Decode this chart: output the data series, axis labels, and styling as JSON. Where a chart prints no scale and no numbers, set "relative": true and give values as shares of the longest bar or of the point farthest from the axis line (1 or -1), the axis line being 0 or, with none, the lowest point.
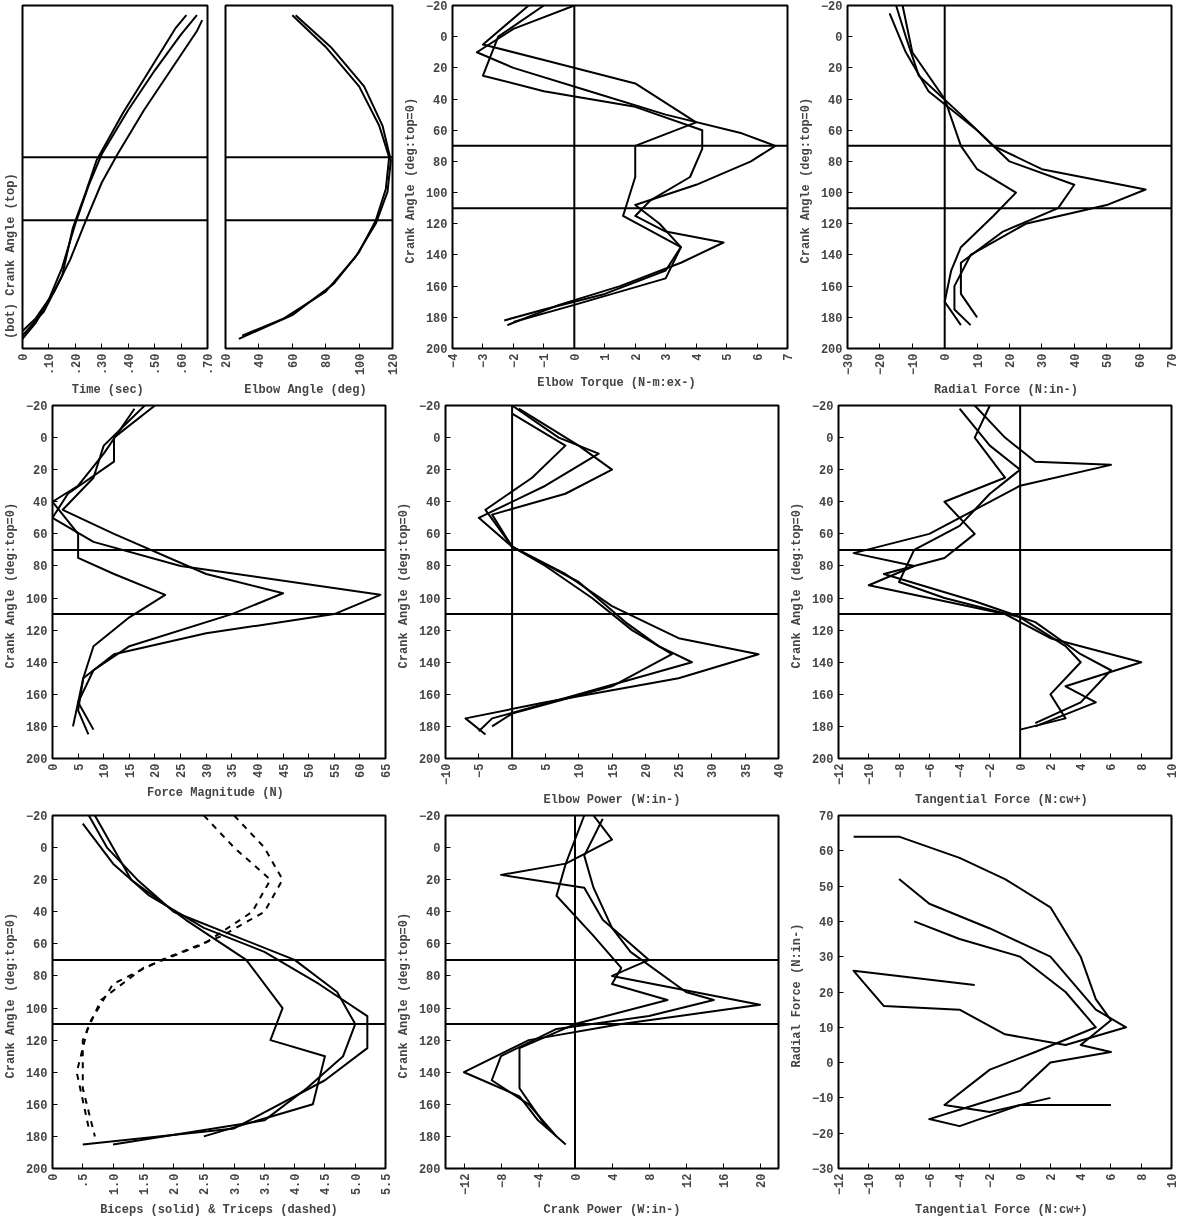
{
  "chart_data": [
    {
      "type": "line",
      "relative": true,
      "xlabel": "Time   (sec)",
      "ylabel": "(bot)            Crank Angle            (top)",
      "xlim": [
        0,
        0.7
      ],
      "xticks": [
        {
          "value": 0,
          "label": "0"
        },
        {
          "value": 0.1,
          "label": ".10"
        },
        {
          "value": 0.2,
          "label": ".20"
        },
        {
          "value": 0.3,
          "label": ".30"
        },
        {
          "value": 0.4,
          "label": ".40"
        },
        {
          "value": 0.5,
          "label": ".50"
        },
        {
          "value": 0.6,
          "label": ".60"
        },
        {
          "value": 0.7,
          "label": ".70"
        }
      ],
      "ref_lines": [
        {
          "axis": "y",
          "value": 0.561
        },
        {
          "axis": "y",
          "value": 0.366
        }
      ],
      "series": [
        {
          "color": "#000000",
          "x": [
            0,
            0.05,
            0.1,
            0.15,
            0.2,
            0.25,
            0.3,
            0.4,
            0.5,
            0.6,
            0.66
          ],
          "values": [
            0,
            0.049,
            0.122,
            0.22,
            0.356,
            0.473,
            0.571,
            0.707,
            0.829,
            0.941,
            1
          ]
        },
        {
          "color": "#000000",
          "x": [
            0,
            0.05,
            0.12,
            0.18,
            0.24,
            0.3,
            0.36,
            0.46,
            0.56,
            0.66,
            0.68
          ],
          "values": [
            0.024,
            0.063,
            0.146,
            0.244,
            0.366,
            0.483,
            0.571,
            0.707,
            0.829,
            0.951,
            0.985
          ]
        },
        {
          "color": "#000000",
          "x": [
            0,
            0.08,
            0.15,
            0.19,
            0.24,
            0.28,
            0.38,
            0.48,
            0.58,
            0.62
          ],
          "values": [
            0.01,
            0.083,
            0.195,
            0.341,
            0.454,
            0.551,
            0.698,
            0.829,
            0.961,
            1
          ]
        }
      ]
    },
    {
      "type": "line",
      "relative": true,
      "xlabel": "Elbow Angle  (deg)",
      "xlim": [
        20,
        120
      ],
      "xticks": [
        20,
        40,
        60,
        80,
        100,
        120
      ],
      "ref_lines": [
        {
          "axis": "y",
          "value": 0.561
        },
        {
          "axis": "y",
          "value": 0.366
        }
      ],
      "series": [
        {
          "color": "#000000",
          "x": [
            60,
            80,
            100,
            112,
            118,
            116,
            110,
            100,
            85,
            60,
            28
          ],
          "values": [
            1,
            0.902,
            0.78,
            0.659,
            0.561,
            0.463,
            0.366,
            0.268,
            0.171,
            0.073,
            0
          ]
        },
        {
          "color": "#000000",
          "x": [
            62,
            83,
            103,
            114,
            119,
            117,
            110,
            98,
            80,
            55,
            30
          ],
          "values": [
            1,
            0.902,
            0.78,
            0.659,
            0.551,
            0.454,
            0.356,
            0.254,
            0.146,
            0.063,
            0.01
          ]
        }
      ]
    },
    {
      "type": "line",
      "xlabel": "Elbow Torque  (N-m:ex-)",
      "ylabel": "Crank Angle  (deg:top=0)",
      "xlim": [
        -4,
        7
      ],
      "xticks": [
        -4,
        -3,
        -2,
        -1,
        0,
        1,
        2,
        3,
        4,
        5,
        6,
        7
      ],
      "ylim": [
        200,
        -20
      ],
      "yticks": [
        -20,
        0,
        20,
        40,
        60,
        80,
        100,
        120,
        140,
        160,
        180,
        200
      ],
      "ref_lines": [
        {
          "axis": "y",
          "value": 70
        },
        {
          "axis": "y",
          "value": 110
        },
        {
          "axis": "x",
          "value": 0
        }
      ],
      "series": [
        {
          "color": "#000000",
          "x": [
            0,
            -2,
            -3.2,
            -2,
            0.5,
            3,
            5.5,
            6.6,
            5.8,
            4,
            2,
            2.8,
            3.5,
            3,
            1,
            -1,
            -2.3
          ],
          "values": [
            -20,
            -5,
            10,
            20,
            35,
            50,
            62,
            70,
            80,
            95,
            108,
            120,
            135,
            150,
            165,
            175,
            182
          ]
        },
        {
          "color": "#000000",
          "x": [
            -1,
            -2.5,
            -3,
            -1,
            2,
            4.2,
            4.2,
            3.8,
            2.5,
            2,
            3,
            4.9,
            3.5,
            1.5,
            -0.5,
            -2.2
          ],
          "values": [
            -20,
            0,
            25,
            35,
            45,
            60,
            72,
            90,
            105,
            115,
            125,
            132,
            145,
            160,
            172,
            185
          ]
        },
        {
          "color": "#000000",
          "x": [
            -1.5,
            -3,
            -1,
            2,
            4,
            2,
            2,
            1.6,
            3.5,
            3,
            0,
            -2
          ],
          "values": [
            -20,
            5,
            15,
            30,
            55,
            70,
            90,
            115,
            135,
            155,
            172,
            183
          ]
        }
      ]
    },
    {
      "type": "line",
      "xlabel": "Radial Force  (N:in-)",
      "ylabel": "Crank Angle  (deg:top=0)",
      "xlim": [
        -30,
        70
      ],
      "xticks": [
        -30,
        -20,
        -10,
        0,
        10,
        20,
        30,
        40,
        50,
        60,
        70
      ],
      "ylim": [
        200,
        -20
      ],
      "yticks": [
        -20,
        0,
        20,
        40,
        60,
        80,
        100,
        120,
        140,
        160,
        180,
        200
      ],
      "ref_lines": [
        {
          "axis": "y",
          "value": 70
        },
        {
          "axis": "y",
          "value": 110
        },
        {
          "axis": "x",
          "value": 0
        }
      ],
      "series": [
        {
          "color": "#000000",
          "x": [
            -15,
            -12,
            -8,
            5,
            15,
            30,
            62,
            50,
            25,
            8,
            3,
            3,
            8
          ],
          "values": [
            -20,
            0,
            25,
            50,
            70,
            85,
            98,
            108,
            120,
            140,
            160,
            175,
            185
          ]
        },
        {
          "color": "#000000",
          "x": [
            -17,
            -12,
            -5,
            10,
            20,
            40,
            35,
            18,
            5,
            5,
            10
          ],
          "values": [
            -15,
            10,
            35,
            60,
            80,
            95,
            110,
            125,
            145,
            165,
            180
          ]
        },
        {
          "color": "#000000",
          "x": [
            -13,
            -10,
            0,
            5,
            10,
            22,
            15,
            5,
            2,
            0,
            5
          ],
          "values": [
            -20,
            10,
            40,
            70,
            85,
            100,
            115,
            135,
            150,
            170,
            185
          ]
        }
      ]
    },
    {
      "type": "line",
      "xlabel": "Force Magnitude  (N)",
      "ylabel": "Crank Angle  (deg:top=0)",
      "xlim": [
        0,
        65
      ],
      "xticks": [
        0,
        5,
        10,
        15,
        20,
        25,
        30,
        35,
        40,
        45,
        50,
        55,
        60,
        65
      ],
      "ylim": [
        200,
        -20
      ],
      "yticks": [
        -20,
        0,
        20,
        40,
        60,
        80,
        100,
        120,
        140,
        160,
        180,
        200
      ],
      "ref_lines": [
        {
          "axis": "y",
          "value": 70
        },
        {
          "axis": "y",
          "value": 110
        }
      ],
      "series": [
        {
          "color": "#000000",
          "x": [
            20,
            12,
            12,
            3,
            0,
            8,
            25,
            64,
            55,
            30,
            12,
            6,
            5,
            7
          ],
          "values": [
            -20,
            0,
            15,
            35,
            50,
            65,
            80,
            98,
            110,
            122,
            135,
            150,
            170,
            185
          ]
        },
        {
          "color": "#000000",
          "x": [
            18,
            10,
            8,
            2,
            12,
            30,
            45,
            35,
            15,
            8,
            5,
            8
          ],
          "values": [
            -20,
            5,
            25,
            45,
            60,
            85,
            97,
            110,
            130,
            145,
            165,
            182
          ]
        },
        {
          "color": "#000000",
          "x": [
            16,
            10,
            5,
            0,
            5,
            5,
            12,
            22,
            15,
            8,
            6,
            4
          ],
          "values": [
            -18,
            10,
            30,
            40,
            60,
            75,
            85,
            98,
            112,
            130,
            150,
            180
          ]
        }
      ]
    },
    {
      "type": "line",
      "xlabel": "Elbow Power (W:in-)",
      "ylabel": "Crank Angle  (deg:top=0)",
      "xlim": [
        -10,
        40
      ],
      "xticks": [
        -10,
        -5,
        0,
        5,
        10,
        15,
        20,
        25,
        30,
        35,
        40
      ],
      "ylim": [
        200,
        -20
      ],
      "yticks": [
        -20,
        0,
        20,
        40,
        60,
        80,
        100,
        120,
        140,
        160,
        180,
        200
      ],
      "ref_lines": [
        {
          "axis": "y",
          "value": 70
        },
        {
          "axis": "y",
          "value": 110
        },
        {
          "axis": "x",
          "value": 0
        }
      ],
      "series": [
        {
          "color": "#000000",
          "x": [
            0,
            7,
            13,
            5,
            -5,
            0,
            8,
            15,
            25,
            37,
            25,
            5,
            -7,
            -4
          ],
          "values": [
            -20,
            0,
            10,
            30,
            50,
            68,
            85,
            105,
            125,
            135,
            150,
            165,
            175,
            185
          ]
        },
        {
          "color": "#000000",
          "x": [
            1,
            10,
            15,
            8,
            -3,
            0,
            10,
            17,
            22,
            27,
            10,
            -3,
            -5
          ],
          "values": [
            -18,
            5,
            20,
            35,
            48,
            68,
            90,
            115,
            130,
            140,
            160,
            175,
            183
          ]
        },
        {
          "color": "#000000",
          "x": [
            0,
            8,
            3,
            -4,
            0,
            5,
            12,
            18,
            24,
            15,
            0,
            -3
          ],
          "values": [
            -15,
            5,
            25,
            45,
            68,
            80,
            100,
            120,
            135,
            155,
            172,
            180
          ]
        }
      ]
    },
    {
      "type": "line",
      "xlabel": "Tangential Force  (N:cw+)",
      "ylabel": "Crank Angle  (deg:top=0)",
      "xlim": [
        -12,
        10
      ],
      "xticks": [
        -12,
        -10,
        -8,
        -6,
        -4,
        -2,
        0,
        2,
        4,
        6,
        8,
        10
      ],
      "ylim": [
        200,
        -20
      ],
      "yticks": [
        -20,
        0,
        20,
        40,
        60,
        80,
        100,
        120,
        140,
        160,
        180,
        200
      ],
      "ref_lines": [
        {
          "axis": "y",
          "value": 70
        },
        {
          "axis": "y",
          "value": 110
        },
        {
          "axis": "x",
          "value": 0
        }
      ],
      "series": [
        {
          "color": "#000000",
          "x": [
            -3,
            -1,
            1,
            6,
            0,
            -3,
            -6,
            -11,
            -7,
            -10,
            -6,
            -1,
            2,
            8,
            3,
            5,
            1
          ],
          "values": [
            -20,
            0,
            15,
            17,
            30,
            45,
            60,
            72,
            80,
            92,
            100,
            110,
            125,
            140,
            155,
            165,
            180
          ]
        },
        {
          "color": "#000000",
          "x": [
            -4,
            -2,
            0,
            -2,
            -4,
            -7,
            -8,
            -5,
            0,
            3,
            4,
            2,
            3,
            0
          ],
          "values": [
            -18,
            5,
            20,
            35,
            55,
            70,
            90,
            100,
            112,
            130,
            140,
            160,
            175,
            182
          ]
        },
        {
          "color": "#000000",
          "x": [
            -2,
            -3,
            -1,
            -5,
            -3,
            -5,
            -9,
            -3,
            1,
            4,
            6,
            4,
            1
          ],
          "values": [
            -20,
            0,
            25,
            40,
            60,
            75,
            85,
            102,
            115,
            135,
            145,
            165,
            178
          ]
        }
      ]
    },
    {
      "type": "line",
      "xlabel": "Biceps (solid) & Triceps (dashed)",
      "ylabel": "Crank Angle  (deg:top=0)",
      "xlim": [
        0,
        5.5
      ],
      "xticks": [
        {
          "value": 0,
          "label": "0"
        },
        {
          "value": 0.5,
          "label": ".5"
        },
        {
          "value": 1,
          "label": "1.0"
        },
        {
          "value": 1.5,
          "label": "1.5"
        },
        {
          "value": 2,
          "label": "2.0"
        },
        {
          "value": 2.5,
          "label": "2.5"
        },
        {
          "value": 3,
          "label": "3.0"
        },
        {
          "value": 3.5,
          "label": "3.5"
        },
        {
          "value": 4,
          "label": "4.0"
        },
        {
          "value": 4.5,
          "label": "4.5"
        },
        {
          "value": 5,
          "label": "5.0"
        },
        {
          "value": 5.5,
          "label": "5.5"
        }
      ],
      "ylim": [
        200,
        -20
      ],
      "yticks": [
        -20,
        0,
        20,
        40,
        60,
        80,
        100,
        120,
        140,
        160,
        180,
        200
      ],
      "ref_lines": [
        {
          "axis": "y",
          "value": 70
        },
        {
          "axis": "y",
          "value": 110
        }
      ],
      "series": [
        {
          "color": "#000000",
          "x": [
            0.6,
            0.9,
            1.4,
            2,
            3,
            4,
            4.7,
            5,
            4.8,
            4.2,
            3.5,
            1
          ],
          "values": [
            -20,
            0,
            20,
            40,
            55,
            70,
            90,
            110,
            130,
            150,
            170,
            185
          ]
        },
        {
          "color": "#000000",
          "x": [
            0.5,
            1,
            1.6,
            2.5,
            3.5,
            4.4,
            5.2,
            5.2,
            4.5,
            3,
            0.5
          ],
          "values": [
            -15,
            10,
            30,
            50,
            65,
            85,
            105,
            125,
            145,
            175,
            185
          ]
        },
        {
          "color": "#000000",
          "x": [
            0.7,
            1.3,
            2.2,
            3.2,
            3.8,
            3.6,
            4.5,
            4.3,
            2.5
          ],
          "values": [
            -20,
            20,
            45,
            70,
            100,
            120,
            130,
            160,
            180
          ]
        },
        {
          "color": "#000000",
          "line_style": "dashed",
          "x": [
            2.5,
            3,
            3.6,
            3.3,
            2.5,
            1.5,
            0.8,
            0.5,
            0.5,
            0.7
          ],
          "values": [
            -20,
            0,
            20,
            40,
            60,
            75,
            95,
            120,
            150,
            180
          ]
        },
        {
          "color": "#000000",
          "line_style": "dashed",
          "x": [
            3,
            3.5,
            3.8,
            3.5,
            2.8,
            1.8,
            1,
            0.6,
            0.4,
            0.6
          ],
          "values": [
            -20,
            0,
            20,
            40,
            55,
            70,
            85,
            110,
            140,
            175
          ]
        }
      ]
    },
    {
      "type": "line",
      "xlabel": "Crank Power (W:in-)",
      "ylabel": "Crank Angle  (deg:top=0)",
      "xlim": [
        -14,
        22
      ],
      "xticks": [
        -12,
        -8,
        -4,
        0,
        4,
        8,
        12,
        16,
        20
      ],
      "ylim": [
        200,
        -20
      ],
      "yticks": [
        -20,
        0,
        20,
        40,
        60,
        80,
        100,
        120,
        140,
        160,
        180,
        200
      ],
      "ref_lines": [
        {
          "axis": "y",
          "value": 70
        },
        {
          "axis": "y",
          "value": 110
        },
        {
          "axis": "x",
          "value": 0
        }
      ],
      "series": [
        {
          "color": "#000000",
          "x": [
            2,
            4,
            -1,
            -8,
            1,
            3,
            8,
            4,
            20,
            5,
            -5,
            -12,
            -6,
            -4,
            -1
          ],
          "values": [
            -20,
            -5,
            10,
            17,
            25,
            45,
            70,
            80,
            98,
            110,
            120,
            140,
            155,
            170,
            185
          ]
        },
        {
          "color": "#000000",
          "x": [
            3,
            1,
            2,
            4,
            6,
            12,
            15,
            8,
            -2,
            -8,
            -9,
            -5,
            -2
          ],
          "values": [
            -18,
            5,
            25,
            50,
            65,
            90,
            95,
            105,
            113,
            130,
            145,
            160,
            180
          ]
        },
        {
          "color": "#000000",
          "x": [
            1,
            -1,
            -2,
            2,
            5,
            4,
            10,
            0,
            -6,
            -6,
            -3
          ],
          "values": [
            -20,
            10,
            30,
            55,
            75,
            85,
            95,
            110,
            125,
            150,
            175
          ]
        }
      ]
    },
    {
      "type": "line",
      "xlabel": "Tangential Force  (N:cw+)",
      "ylabel": "Radial Force  (N:in-)",
      "xlim": [
        -12,
        10
      ],
      "xticks": [
        -12,
        -10,
        -8,
        -6,
        -4,
        -2,
        0,
        2,
        4,
        6,
        8,
        10
      ],
      "ylim": [
        -30,
        70
      ],
      "yticks": [
        -30,
        -20,
        -10,
        0,
        10,
        20,
        30,
        40,
        50,
        60,
        70
      ],
      "series": [
        {
          "color": "#000000",
          "x": [
            -11,
            -8,
            -4,
            -1,
            2,
            4,
            5,
            6,
            4,
            6,
            2,
            0,
            -3,
            -6,
            -4,
            0,
            6
          ],
          "values": [
            64,
            64,
            58,
            52,
            44,
            30,
            18,
            12,
            5,
            3,
            0,
            -8,
            -12,
            -16,
            -18,
            -12,
            -12
          ]
        },
        {
          "color": "#000000",
          "x": [
            -8,
            -6,
            -2,
            2,
            5,
            7,
            3,
            -1,
            -4,
            -9,
            -11,
            -3
          ],
          "values": [
            52,
            45,
            38,
            30,
            15,
            10,
            5,
            8,
            15,
            16,
            26,
            22
          ]
        },
        {
          "color": "#000000",
          "x": [
            -7,
            -4,
            0,
            3,
            5,
            1,
            -2,
            -5,
            -2,
            2
          ],
          "values": [
            40,
            35,
            30,
            20,
            10,
            3,
            -2,
            -12,
            -14,
            -10
          ]
        }
      ]
    }
  ]
}
